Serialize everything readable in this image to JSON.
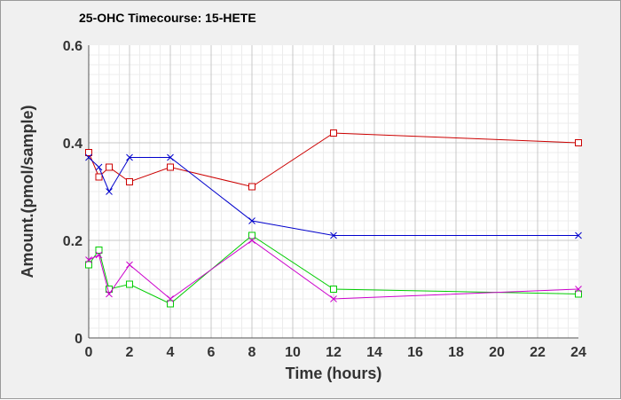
{
  "chart_data": {
    "type": "line",
    "title": "25-OHC Timecourse: 15-HETE",
    "xlabel": "Time (hours)",
    "ylabel": "Amount.(pmol/sample)",
    "xlim": [
      0,
      24
    ],
    "ylim": [
      0,
      0.6
    ],
    "xticks": [
      "0",
      "2",
      "4",
      "6",
      "8",
      "10",
      "12",
      "14",
      "16",
      "18",
      "20",
      "22",
      "24"
    ],
    "yticks": [
      "0",
      "0.2",
      "0.4",
      "0.6"
    ],
    "grid": true,
    "legend": "none",
    "series": [
      {
        "color": "#cc0000",
        "marker": "square",
        "x": [
          0,
          0.5,
          1,
          2,
          4,
          8,
          12,
          24
        ],
        "y": [
          0.38,
          0.33,
          0.35,
          0.32,
          0.35,
          0.31,
          0.42,
          0.4
        ]
      },
      {
        "color": "#0000cc",
        "marker": "x",
        "x": [
          0,
          0.5,
          1,
          2,
          4,
          8,
          12,
          24
        ],
        "y": [
          0.37,
          0.35,
          0.3,
          0.37,
          0.37,
          0.24,
          0.21,
          0.21
        ]
      },
      {
        "color": "#00cc00",
        "marker": "square",
        "x": [
          0,
          0.5,
          1,
          2,
          4,
          8,
          12,
          24
        ],
        "y": [
          0.15,
          0.18,
          0.1,
          0.11,
          0.07,
          0.21,
          0.1,
          0.09
        ]
      },
      {
        "color": "#cc00cc",
        "marker": "x",
        "x": [
          0,
          0.5,
          1,
          2,
          4,
          8,
          12,
          24
        ],
        "y": [
          0.16,
          0.17,
          0.09,
          0.15,
          0.08,
          0.2,
          0.08,
          0.1
        ]
      }
    ]
  }
}
